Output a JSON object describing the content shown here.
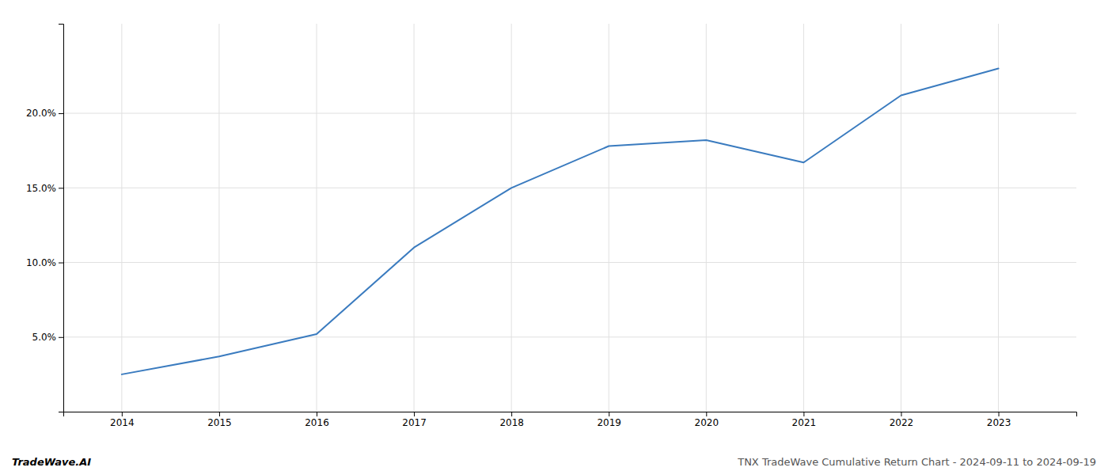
{
  "chart_data": {
    "type": "line",
    "title": "TNX TradeWave Cumulative Return Chart - 2024-09-11 to 2024-09-19",
    "annotations": [
      "TradeWave.AI"
    ],
    "x": [
      2014,
      2015,
      2016,
      2017,
      2018,
      2019,
      2020,
      2021,
      2022,
      2023
    ],
    "values": [
      2.5,
      3.7,
      5.2,
      11.0,
      15.0,
      17.8,
      18.2,
      16.7,
      21.2,
      23.0
    ],
    "color": "#3a7bbf",
    "xlim": [
      2013.4,
      2023.8
    ],
    "xticks": [
      2014,
      2015,
      2016,
      2017,
      2018,
      2019,
      2020,
      2021,
      2022,
      2023
    ],
    "ylim": [
      0,
      26
    ],
    "yticks": [
      {
        "value": 5.0,
        "label": "5.0%"
      },
      {
        "value": 10.0,
        "label": "10.0%"
      },
      {
        "value": 15.0,
        "label": "15.0%"
      },
      {
        "value": 20.0,
        "label": "20.0%"
      }
    ],
    "grid": true
  }
}
